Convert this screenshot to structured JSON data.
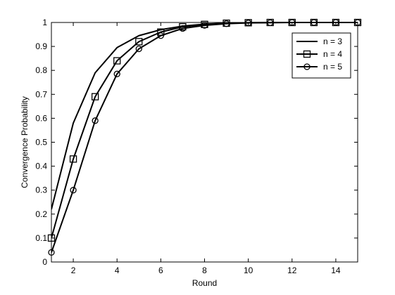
{
  "chart_data": {
    "type": "line",
    "title": "",
    "xlabel": "Round",
    "ylabel": "Convergence Probability",
    "xlim": [
      1,
      15
    ],
    "ylim": [
      0,
      1
    ],
    "xticks": [
      "2",
      "4",
      "6",
      "8",
      "10",
      "12",
      "14"
    ],
    "yticks": [
      "0",
      "0.1",
      "0.2",
      "0.3",
      "0.4",
      "0.5",
      "0.6",
      "0.7",
      "0.8",
      "0.9",
      "1"
    ],
    "grid": false,
    "legend_position": "top-right",
    "series": [
      {
        "name": "n = 3",
        "marker": "none",
        "color": "#000000",
        "x": [
          1,
          2,
          3,
          4,
          5,
          6,
          7,
          8,
          9,
          10,
          11,
          12,
          13,
          14,
          15
        ],
        "y": [
          0.22,
          0.58,
          0.79,
          0.895,
          0.945,
          0.97,
          0.985,
          0.993,
          0.997,
          0.999,
          1.0,
          1.0,
          1.0,
          1.0,
          1.0
        ]
      },
      {
        "name": "n = 4",
        "marker": "square",
        "color": "#000000",
        "x": [
          1,
          2,
          3,
          4,
          5,
          6,
          7,
          8,
          9,
          10,
          11,
          12,
          13,
          14,
          15
        ],
        "y": [
          0.1,
          0.43,
          0.69,
          0.84,
          0.92,
          0.96,
          0.982,
          0.992,
          0.997,
          0.999,
          1.0,
          1.0,
          1.0,
          1.0,
          1.0
        ]
      },
      {
        "name": "n = 5",
        "marker": "circle",
        "color": "#000000",
        "x": [
          1,
          2,
          3,
          4,
          5,
          6,
          7,
          8,
          9,
          10,
          11,
          12,
          13,
          14,
          15
        ],
        "y": [
          0.04,
          0.3,
          0.59,
          0.785,
          0.89,
          0.945,
          0.975,
          0.988,
          0.995,
          0.998,
          0.999,
          1.0,
          1.0,
          1.0,
          1.0
        ]
      }
    ]
  }
}
